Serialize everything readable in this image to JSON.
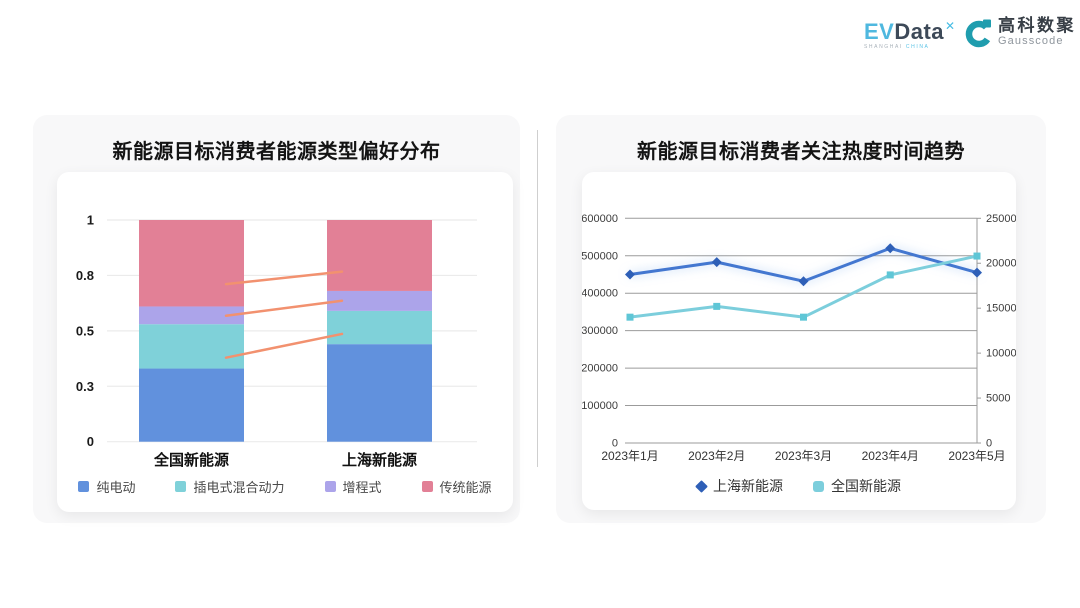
{
  "branding": {
    "evdata": {
      "prefix": "EV",
      "suffix": "Data",
      "mark": "✕",
      "subtext_left": "SHANGHAI",
      "subtext_right": "CHINA"
    },
    "gausscode": {
      "name_cn": "高科数聚",
      "name_en": "Gausscode"
    }
  },
  "colors": {
    "card_bg": "#f8f8f9",
    "grid_light": "#ebebeb",
    "grid_dark": "#9b9b9b",
    "axis_text_dark": "#1a1a1a",
    "axis_text_gray": "#3c3c3c",
    "connector": "#F2916F"
  },
  "chart_data": [
    {
      "type": "bar",
      "stacked": true,
      "title": "新能源目标消费者能源类型偏好分布",
      "categories": [
        "全国新能源",
        "上海新能源"
      ],
      "series": [
        {
          "name": "纯电动",
          "color": "#6191DD",
          "values": [
            0.33,
            0.44
          ]
        },
        {
          "name": "插电式混合动力",
          "color": "#7FD1D9",
          "values": [
            0.2,
            0.15
          ]
        },
        {
          "name": "增程式",
          "color": "#ACA4EA",
          "values": [
            0.08,
            0.09
          ]
        },
        {
          "name": "传统能源",
          "color": "#E28096",
          "values": [
            0.39,
            0.32
          ]
        }
      ],
      "ylim": [
        0,
        1
      ],
      "y_ticks": [
        {
          "v": 0,
          "label": "0"
        },
        {
          "v": 0.25,
          "label": "0.3"
        },
        {
          "v": 0.5,
          "label": "0.5"
        },
        {
          "v": 0.75,
          "label": "0.8"
        },
        {
          "v": 1,
          "label": "1"
        }
      ],
      "grid": true,
      "legend_position": "bottom",
      "connector_lines": {
        "color": "#F2916F",
        "segments": [
          [
            0.379,
            0.486
          ],
          [
            0.568,
            0.636
          ],
          [
            0.711,
            0.767
          ]
        ]
      }
    },
    {
      "type": "line",
      "title": "新能源目标消费者关注热度时间趋势",
      "x": [
        "2023年1月",
        "2023年2月",
        "2023年3月",
        "2023年4月",
        "2023年5月"
      ],
      "series": [
        {
          "name": "上海新能源",
          "axis": "left",
          "color": "#4377D0",
          "marker": "diamond",
          "marker_color": "#2E5FB7",
          "glow": true,
          "values": [
            450000,
            483000,
            432000,
            520000,
            455000
          ]
        },
        {
          "name": "全国新能源",
          "axis": "right",
          "color": "#7CCEDC",
          "marker": "square",
          "marker_color": "#5FC6D6",
          "glow": false,
          "values": [
            14000,
            15200,
            14000,
            18700,
            20800
          ]
        }
      ],
      "left_axis": {
        "min": 0,
        "max": 600000,
        "ticks": [
          "600000",
          "500000",
          "400000",
          "300000",
          "200000",
          "100000",
          "0"
        ]
      },
      "right_axis": {
        "min": 0,
        "max": 25000,
        "ticks": [
          "25000",
          "20000",
          "15000",
          "10000",
          "5000",
          "0"
        ]
      },
      "grid": true,
      "legend_position": "bottom"
    }
  ]
}
